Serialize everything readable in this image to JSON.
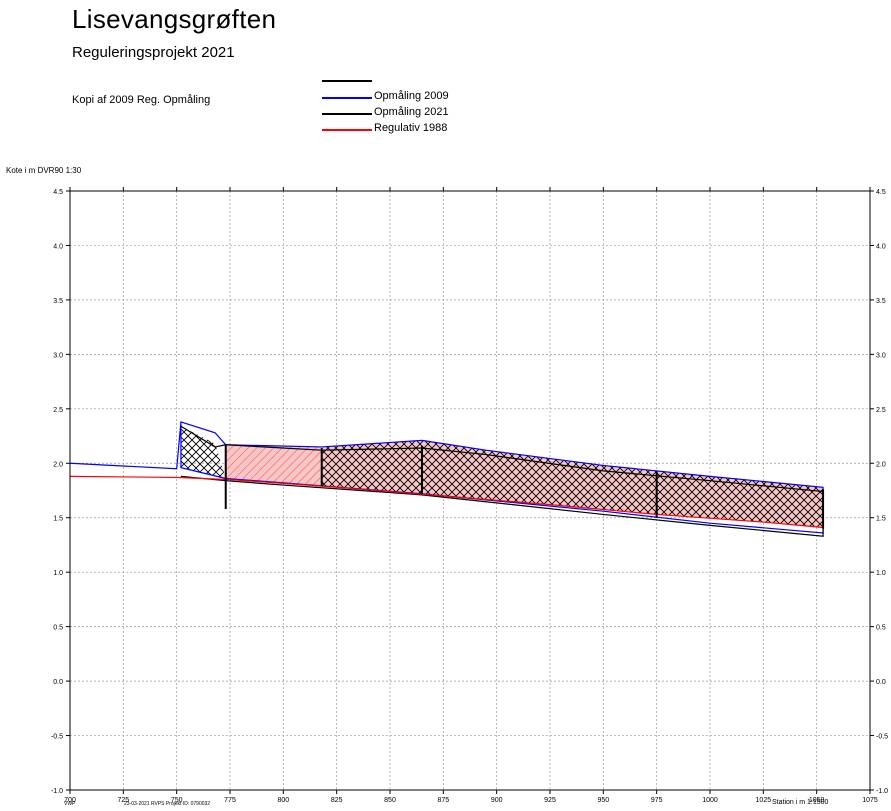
{
  "title": "Lisevangsgrøften",
  "subtitle": "Reguleringsprojekt 2021",
  "note": "Kopi af 2009 Reg. Opmåling",
  "legend": [
    {
      "label": "Opmåling 2009",
      "color": "#0000ff"
    },
    {
      "label": "Opmåling 2021",
      "color": "#000000"
    },
    {
      "label": "Regulativ 1988",
      "color": "#ff0000"
    }
  ],
  "footer": {
    "left": "VWP",
    "mid": "23-03-2021 RVPS Projekt ID: 0790032",
    "right": "Station i m  1:1500"
  },
  "chart_data": {
    "type": "line",
    "ylabel": "Kote i m DVR90 1:30",
    "xlabel": "Station i m  1:1500",
    "xlim": [
      700,
      1075
    ],
    "ylim": [
      -1.0,
      4.5
    ],
    "x_ticks": [
      "700",
      "725",
      "750",
      "775",
      "800",
      "825",
      "850",
      "875",
      "900",
      "925",
      "950",
      "975",
      "1000",
      "1025",
      "1050",
      "1075"
    ],
    "y_ticks": [
      "4.5",
      "4.0",
      "3.5",
      "3.0",
      "2.5",
      "2.0",
      "1.5",
      "1.0",
      "0.5",
      "0.0",
      "-0.5",
      "-1.0"
    ],
    "grid": true,
    "series": [
      {
        "name": "Opmåling 2009",
        "color": "#0000ff",
        "points": [
          [
            700,
            2.0
          ],
          [
            750,
            1.95
          ],
          [
            752,
            2.38
          ],
          [
            768,
            2.28
          ],
          [
            773,
            2.17
          ],
          [
            818,
            2.15
          ],
          [
            865,
            2.21
          ],
          [
            895,
            2.12
          ],
          [
            950,
            1.98
          ],
          [
            1000,
            1.88
          ],
          [
            1053,
            1.78
          ],
          [
            1053,
            1.36
          ],
          [
            1000,
            1.45
          ],
          [
            950,
            1.56
          ],
          [
            865,
            1.72
          ],
          [
            800,
            1.82
          ],
          [
            773,
            1.86
          ],
          [
            752,
            1.96
          ],
          [
            752,
            2.38
          ]
        ]
      },
      {
        "name": "Opmåling 2021",
        "color": "#000000",
        "points": [
          [
            752,
            2.34
          ],
          [
            768,
            2.15
          ],
          [
            773,
            2.17
          ],
          [
            818,
            2.12
          ],
          [
            865,
            2.14
          ],
          [
            895,
            2.08
          ],
          [
            950,
            1.93
          ],
          [
            1000,
            1.84
          ],
          [
            1053,
            1.74
          ],
          [
            1053,
            1.33
          ],
          [
            1000,
            1.43
          ],
          [
            950,
            1.53
          ],
          [
            865,
            1.71
          ],
          [
            800,
            1.8
          ],
          [
            773,
            1.84
          ],
          [
            752,
            1.88
          ]
        ]
      },
      {
        "name": "Regulativ 1988",
        "color": "#ff0000",
        "points": [
          [
            700,
            1.88
          ],
          [
            750,
            1.87
          ],
          [
            775,
            1.85
          ],
          [
            825,
            1.78
          ],
          [
            875,
            1.7
          ],
          [
            925,
            1.62
          ],
          [
            975,
            1.53
          ],
          [
            1025,
            1.46
          ],
          [
            1053,
            1.41
          ]
        ]
      }
    ],
    "hatched_areas": [
      {
        "x_range": [
          773,
          818
        ],
        "pattern": "single"
      },
      {
        "x_range": [
          818,
          1053
        ],
        "pattern": "cross"
      }
    ],
    "vertical_markers": [
      {
        "x": 773,
        "y_from": 1.58,
        "y_to": 2.17
      },
      {
        "x": 818,
        "y_from": 1.79,
        "y_to": 2.14
      },
      {
        "x": 865,
        "y_from": 1.72,
        "y_to": 2.16
      },
      {
        "x": 975,
        "y_from": 1.5,
        "y_to": 1.93
      },
      {
        "x": 1053,
        "y_from": 1.4,
        "y_to": 1.76
      }
    ]
  }
}
